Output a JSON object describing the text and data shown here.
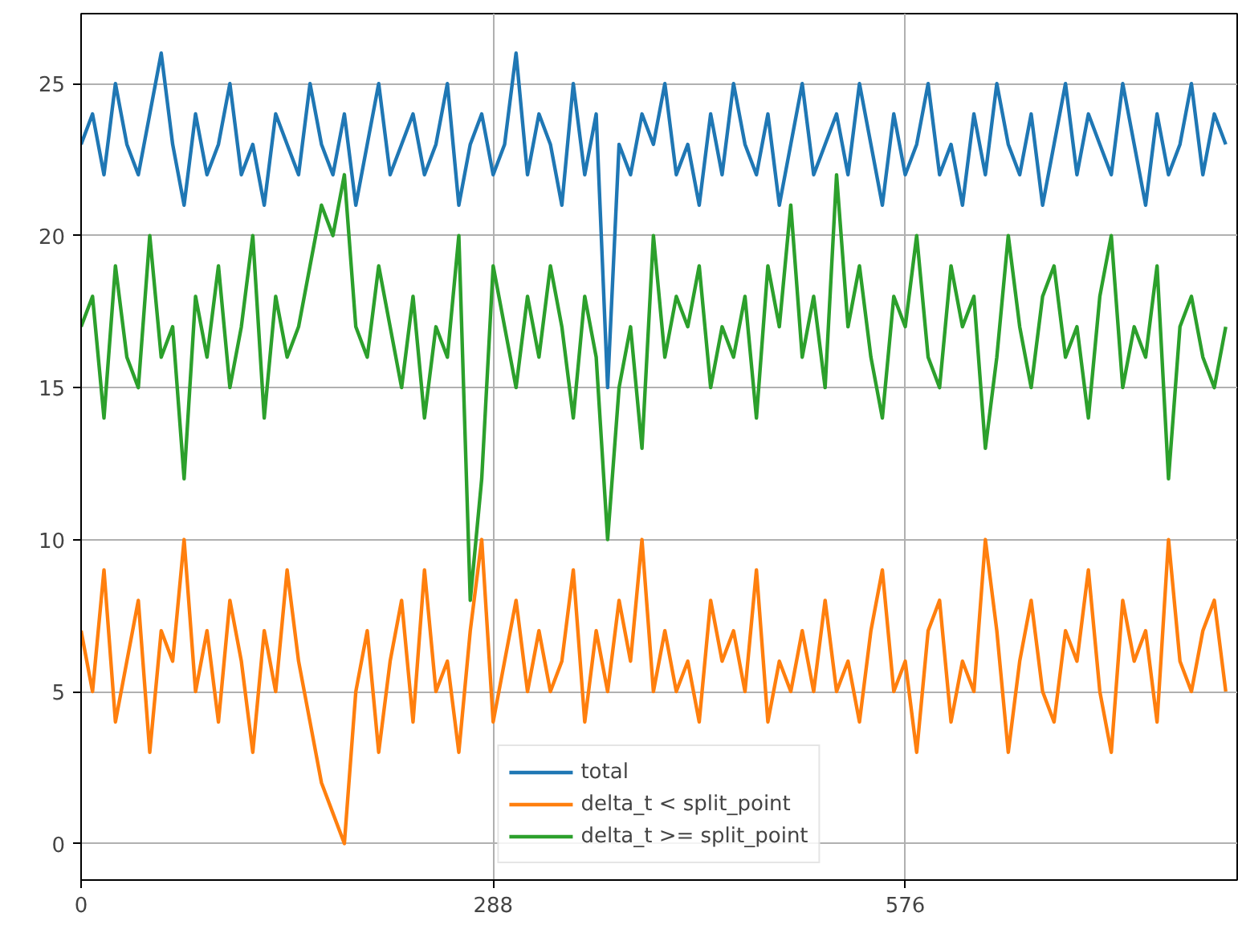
{
  "chart_data": {
    "type": "line",
    "x": [
      0,
      8,
      16,
      24,
      32,
      40,
      48,
      56,
      64,
      72,
      80,
      88,
      96,
      104,
      112,
      120,
      128,
      136,
      144,
      152,
      160,
      168,
      176,
      184,
      192,
      200,
      208,
      216,
      224,
      232,
      240,
      248,
      256,
      264,
      272,
      280,
      288,
      296,
      304,
      312,
      320,
      328,
      336,
      344,
      352,
      360,
      368,
      376,
      384,
      392,
      400,
      408,
      416,
      424,
      432,
      440,
      448,
      456,
      464,
      472,
      480,
      488,
      496,
      504,
      512,
      520,
      528,
      536,
      544,
      552,
      560,
      568,
      576,
      584,
      592,
      600,
      608,
      616,
      624,
      632,
      640,
      648,
      656,
      664,
      672,
      680,
      688,
      696,
      704,
      712,
      720,
      728,
      736,
      744,
      752,
      760,
      768,
      776,
      784,
      792,
      800
    ],
    "series": [
      {
        "name": "total",
        "color": "#1f77b4",
        "values": [
          23,
          24,
          22,
          25,
          23,
          22,
          24,
          26,
          23,
          21,
          24,
          22,
          23,
          25,
          22,
          23,
          21,
          24,
          23,
          22,
          25,
          23,
          22,
          24,
          21,
          23,
          25,
          22,
          23,
          24,
          22,
          23,
          25,
          21,
          23,
          24,
          22,
          23,
          26,
          22,
          24,
          23,
          21,
          25,
          22,
          24,
          15,
          23,
          22,
          24,
          23,
          25,
          22,
          23,
          21,
          24,
          22,
          25,
          23,
          22,
          24,
          21,
          23,
          25,
          22,
          23,
          24,
          22,
          25,
          23,
          21,
          24,
          22,
          23,
          25,
          22,
          23,
          21,
          24,
          22,
          25,
          23,
          22,
          24,
          21,
          23,
          25,
          22,
          24,
          23,
          22,
          25,
          23,
          21,
          24,
          22,
          23,
          25,
          22,
          24,
          23
        ]
      },
      {
        "name": "delta_t < split_point",
        "color": "#ff7f0e",
        "values": [
          7,
          5,
          9,
          4,
          6,
          8,
          3,
          7,
          6,
          10,
          5,
          7,
          4,
          8,
          6,
          3,
          7,
          5,
          9,
          6,
          4,
          2,
          1,
          0,
          5,
          7,
          3,
          6,
          8,
          4,
          9,
          5,
          6,
          3,
          7,
          10,
          4,
          6,
          8,
          5,
          7,
          5,
          6,
          9,
          4,
          7,
          5,
          8,
          6,
          10,
          5,
          7,
          5,
          6,
          4,
          8,
          6,
          7,
          5,
          9,
          4,
          6,
          5,
          7,
          5,
          8,
          5,
          6,
          4,
          7,
          9,
          5,
          6,
          3,
          7,
          8,
          4,
          6,
          5,
          10,
          7,
          3,
          6,
          8,
          5,
          4,
          7,
          6,
          9,
          5,
          3,
          8,
          6,
          7,
          4,
          10,
          6,
          5,
          7,
          8,
          5
        ]
      },
      {
        "name": "delta_t >= split_point",
        "color": "#2ca02c",
        "values": [
          17,
          18,
          14,
          19,
          16,
          15,
          20,
          16,
          17,
          12,
          18,
          16,
          19,
          15,
          17,
          20,
          14,
          18,
          16,
          17,
          19,
          21,
          20,
          22,
          17,
          16,
          19,
          17,
          15,
          18,
          14,
          17,
          16,
          20,
          8,
          12,
          19,
          17,
          15,
          18,
          16,
          19,
          17,
          14,
          18,
          16,
          10,
          15,
          17,
          13,
          20,
          16,
          18,
          17,
          19,
          15,
          17,
          16,
          18,
          14,
          19,
          17,
          21,
          16,
          18,
          15,
          22,
          17,
          19,
          16,
          14,
          18,
          17,
          20,
          16,
          15,
          19,
          17,
          18,
          13,
          16,
          20,
          17,
          15,
          18,
          19,
          16,
          17,
          14,
          18,
          20,
          15,
          17,
          16,
          19,
          12,
          17,
          18,
          16,
          15,
          17
        ]
      }
    ],
    "xlim": [
      0,
      808
    ],
    "ylim": [
      -1.2,
      27.3
    ],
    "xticks": [
      0,
      288,
      576
    ],
    "yticks": [
      0,
      5,
      10,
      15,
      20,
      25
    ],
    "grid": true,
    "legend": "bottom",
    "line_style": "solid"
  }
}
